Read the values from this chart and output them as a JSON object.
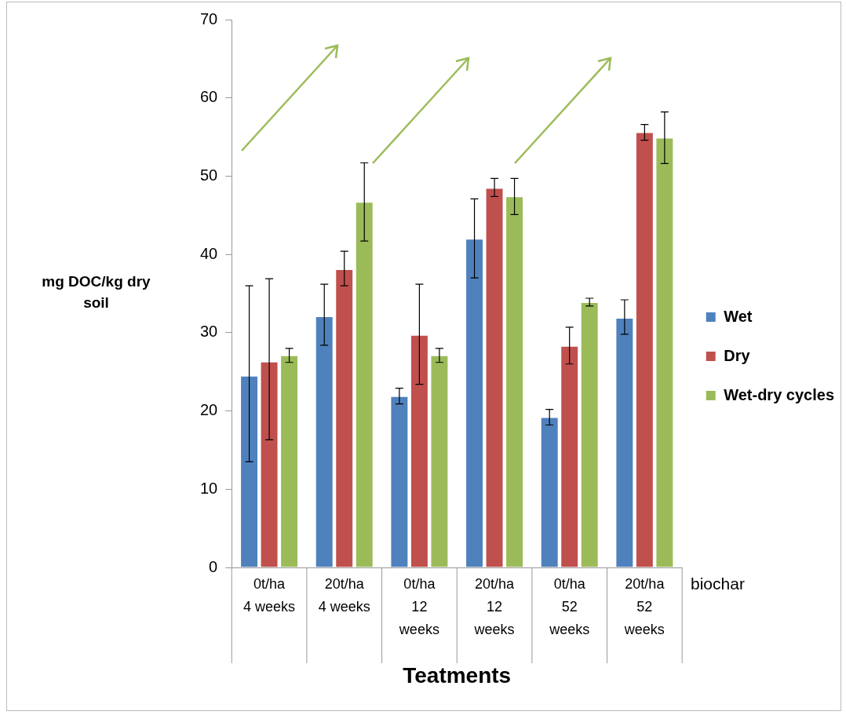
{
  "chart_data": {
    "type": "bar",
    "xlabel": "Teatments",
    "ylabel": "mg DOC/kg dry soil",
    "categories": [
      "0t/ha\n4 weeks",
      "20t/ha\n4 weeks",
      "0t/ha\n12\nweeks",
      "20t/ha\n12\nweeks",
      "0t/ha\n52\nweeks",
      "20t/ha\n52\nweeks"
    ],
    "series": [
      {
        "name": "Wet",
        "color": "#4f81bd",
        "values": [
          24.5,
          32.1,
          21.9,
          42,
          19.2,
          31.9
        ],
        "errors": [
          [
            13.5,
            36
          ],
          [
            28.4,
            36.2
          ],
          [
            20.9,
            22.9
          ],
          [
            37,
            47.1
          ],
          [
            18.2,
            20.2
          ],
          [
            29.8,
            34.2
          ]
        ]
      },
      {
        "name": "Dry",
        "color": "#c0504d",
        "values": [
          26.3,
          38.1,
          29.7,
          48.5,
          28.3,
          55.6
        ],
        "errors": [
          [
            16.3,
            36.9
          ],
          [
            36,
            40.4
          ],
          [
            23.4,
            36.2
          ],
          [
            47.4,
            49.7
          ],
          [
            26,
            30.7
          ],
          [
            54.6,
            56.6
          ]
        ]
      },
      {
        "name": "Wet-dry cycles",
        "color": "#9bbb59",
        "values": [
          27.1,
          46.7,
          27.1,
          47.4,
          33.9,
          54.9
        ],
        "errors": [
          [
            26.2,
            28
          ],
          [
            41.7,
            51.7
          ],
          [
            26.2,
            28
          ],
          [
            45.1,
            49.7
          ],
          [
            33.4,
            34.4
          ],
          [
            51.6,
            58.2
          ]
        ]
      }
    ],
    "ylim": [
      0,
      70
    ],
    "yticks": [
      0,
      10,
      20,
      30,
      40,
      50,
      60,
      70
    ],
    "grid": false,
    "legend": "right",
    "annotations": [
      "biochar"
    ]
  }
}
